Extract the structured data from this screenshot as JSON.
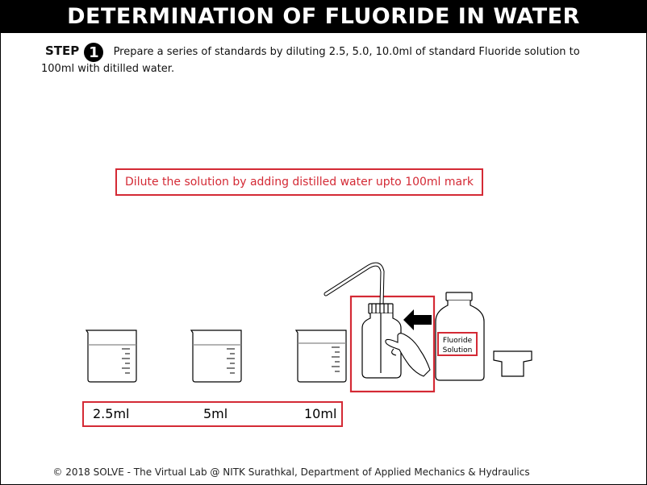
{
  "header": {
    "title": "DETERMINATION OF FLUORIDE IN WATER"
  },
  "step": {
    "label": "STEP",
    "number": "1",
    "text_line1": "Prepare a series of standards by diluting 2.5, 5.0, 10.0ml of standard Fluoride solution to",
    "text_line2": "100ml with ditilled water."
  },
  "instruction": "Dilute the solution by adding distilled water upto 100ml mark",
  "volumes": [
    "2.5ml",
    "5ml",
    "10ml"
  ],
  "bottle_label": {
    "line1": "Fluoride",
    "line2": "Solution"
  },
  "footer": "© 2018 SOLVE - The Virtual Lab @ NITK Surathkal, Department of Applied Mechanics & Hydraulics",
  "colors": {
    "highlight": "#d42a35",
    "title_bg": "#000000"
  }
}
